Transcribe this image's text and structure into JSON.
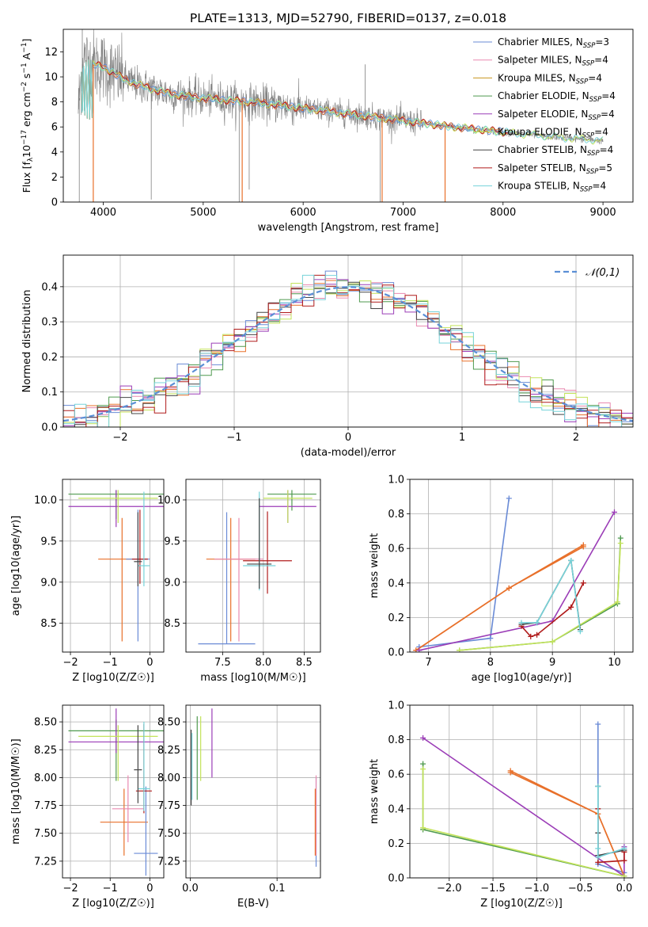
{
  "page_title": "PLATE=1313, MJD=52790, FIBERID=0137, z=0.018",
  "colors": {
    "Chabrier MILES": "#6a8bd6",
    "Salpeter MILES": "#e98ab0",
    "Kroupa MILES": "#c8961e",
    "Chabrier ELODIE": "#4f9a4f",
    "Salpeter ELODIE": "#9b3db7",
    "Kroupa ELODIE": "#c3e35a",
    "Chabrier STELIB": "#444444",
    "Salpeter STELIB": "#b01b1b",
    "Kroupa STELIB": "#76d3d9",
    "data": "#808080",
    "orange": "#e8702a",
    "normal": "#5b8fd6"
  },
  "chart_data": [
    {
      "id": "spectrum",
      "type": "line",
      "title": "PLATE=1313, MJD=52790, FIBERID=0137, z=0.018",
      "xlabel": "wavelength [Angstrom, rest frame]",
      "ylabel": "Flux [f_λ10^-17 erg cm^-2 s^-1 A^-1]",
      "xlim": [
        3600,
        9300
      ],
      "ylim": [
        0,
        13.8
      ],
      "xticks": [
        "4000",
        "5000",
        "6000",
        "7000",
        "8000",
        "9000"
      ],
      "yticks": [
        "0",
        "2",
        "4",
        "6",
        "8",
        "10",
        "12"
      ],
      "legend": [
        "Chabrier MILES, N_SSP=3",
        "Salpeter MILES, N_SSP=4",
        "Kroupa MILES, N_SSP=4",
        "Chabrier ELODIE, N_SSP=4",
        "Salpeter ELODIE, N_SSP=4",
        "Kroupa ELODIE, N_SSP=4",
        "Chabrier STELIB, N_SSP=4",
        "Salpeter STELIB, N_SSP=5",
        "Kroupa STELIB, N_SSP=4"
      ],
      "legend_position": "upper right",
      "model_curve": {
        "x": [
          3750,
          3800,
          3900,
          4000,
          4100,
          4200,
          4300,
          4500,
          4700,
          5000,
          5300,
          5600,
          6000,
          6500,
          7000,
          7500,
          8000,
          8500,
          9000
        ],
        "y": [
          7.5,
          11.5,
          11.0,
          10.8,
          10.3,
          9.9,
          9.5,
          9.0,
          8.6,
          8.3,
          8.1,
          7.9,
          7.5,
          7.0,
          6.5,
          6.0,
          5.6,
          5.2,
          4.9
        ]
      }
    },
    {
      "id": "residuals",
      "type": "line",
      "xlabel": "(data-model)/error",
      "ylabel": "Normed distribution",
      "xlim": [
        -2.5,
        2.5
      ],
      "ylim": [
        0,
        0.49
      ],
      "xticks": [
        "−2",
        "−1",
        "0",
        "1",
        "2"
      ],
      "yticks": [
        "0.0",
        "0.1",
        "0.2",
        "0.3",
        "0.4"
      ],
      "legend": "𝒩(0,1)",
      "legend_position": "upper right",
      "grid": true,
      "histogram_bin_width": 0.1
    },
    {
      "id": "age_vs_z",
      "type": "scatter",
      "xlabel": "Z [log10(Z/Z☉)]",
      "ylabel": "age [log10(age/yr)]",
      "xlim": [
        -2.2,
        0.35
      ],
      "ylim": [
        8.15,
        10.25
      ],
      "xticks": [
        "−2",
        "−1",
        "0"
      ],
      "yticks": [
        "8.5",
        "9.0",
        "9.5",
        "10.0"
      ],
      "grid": true,
      "points": [
        {
          "series": "Chabrier ELODIE",
          "x": -0.85,
          "y": 10.07,
          "x_err": 1.2,
          "y_err": [
            0.3,
            0.05
          ]
        },
        {
          "series": "Salpeter ELODIE",
          "x": -0.85,
          "y": 9.92,
          "x_err": 1.2,
          "y_err": [
            0.25,
            0.2
          ]
        },
        {
          "series": "Kroupa ELODIE",
          "x": -0.8,
          "y": 10.02,
          "x_err": 1.0,
          "y_err": [
            0.3,
            0.1
          ]
        },
        {
          "series": "Kroupa MILES",
          "x": -0.7,
          "y": 9.28,
          "x_err": 0.6,
          "y_err": [
            1.0,
            0.5
          ]
        },
        {
          "series": "Chabrier MILES",
          "x": -0.3,
          "y": 9.28,
          "x_err": 0.3,
          "y_err": [
            1.0,
            0.6
          ]
        },
        {
          "series": "Salpeter STELIB",
          "x": -0.25,
          "y": 9.28,
          "x_err": 0.2,
          "y_err": [
            0.3,
            0.6
          ]
        },
        {
          "series": "Kroupa STELIB",
          "x": -0.15,
          "y": 9.2,
          "x_err": 0.15,
          "y_err": [
            0.25,
            0.9
          ]
        },
        {
          "series": "Chabrier STELIB",
          "x": -0.3,
          "y": 9.25,
          "x_err": 0.1,
          "y_err": [
            0.3,
            0.6
          ]
        }
      ]
    },
    {
      "id": "age_vs_mass",
      "type": "scatter",
      "xlabel": "mass [log10(M/M☉)]",
      "xlim": [
        7.05,
        8.7
      ],
      "ylim": [
        8.15,
        10.25
      ],
      "xticks": [
        "7.5",
        "8.0",
        "8.5"
      ],
      "yticks": [
        "8.5",
        "9.0",
        "9.5",
        "10.0"
      ],
      "grid": true,
      "points": [
        {
          "series": "Chabrier MILES",
          "x": 7.55,
          "y": 8.25,
          "x_err": 0.35,
          "y_err": [
            0.0,
            1.6
          ]
        },
        {
          "series": "Kroupa MILES",
          "x": 7.6,
          "y": 9.28,
          "x_err": 0.3,
          "y_err": [
            1.0,
            0.5
          ]
        },
        {
          "series": "Salpeter MILES",
          "x": 7.7,
          "y": 9.28,
          "x_err": 0.3,
          "y_err": [
            1.0,
            0.5
          ]
        },
        {
          "series": "Chabrier ELODIE",
          "x": 8.35,
          "y": 10.07,
          "x_err": 0.3,
          "y_err": [
            0.2,
            0.05
          ]
        },
        {
          "series": "Salpeter ELODIE",
          "x": 8.3,
          "y": 9.92,
          "x_err": 0.35,
          "y_err": [
            0.2,
            0.2
          ]
        },
        {
          "series": "Kroupa ELODIE",
          "x": 8.3,
          "y": 10.02,
          "x_err": 0.3,
          "y_err": [
            0.3,
            0.1
          ]
        },
        {
          "series": "Salpeter STELIB",
          "x": 8.05,
          "y": 9.26,
          "x_err": 0.3,
          "y_err": [
            0.4,
            0.6
          ]
        },
        {
          "series": "Kroupa STELIB",
          "x": 7.95,
          "y": 9.2,
          "x_err": 0.2,
          "y_err": [
            0.3,
            0.9
          ]
        },
        {
          "series": "Chabrier STELIB",
          "x": 7.95,
          "y": 9.22,
          "x_err": 0.15,
          "y_err": [
            0.3,
            0.8
          ]
        }
      ]
    },
    {
      "id": "weight_vs_age",
      "type": "line",
      "xlabel": "age [log10(age/yr)]",
      "ylabel": "mass weight",
      "xlim": [
        6.7,
        10.3
      ],
      "ylim": [
        0,
        1
      ],
      "xticks": [
        "7",
        "8",
        "9",
        "10"
      ],
      "yticks": [
        "0.0",
        "0.2",
        "0.4",
        "0.6",
        "0.8",
        "1.0"
      ],
      "grid": true,
      "series": [
        {
          "name": "Chabrier MILES",
          "x": [
            6.85,
            8.0,
            8.3
          ],
          "y": [
            0.03,
            0.08,
            0.89
          ]
        },
        {
          "name": "Salpeter MILES",
          "x": [
            6.8,
            8.3,
            9.5
          ],
          "y": [
            0.01,
            0.37,
            0.61
          ]
        },
        {
          "name": "Kroupa MILES",
          "x": [
            6.8,
            8.3,
            9.5
          ],
          "y": [
            0.01,
            0.37,
            0.62
          ]
        },
        {
          "name": "Chabrier ELODIE",
          "x": [
            7.5,
            9.0,
            10.05,
            10.1
          ],
          "y": [
            0.01,
            0.06,
            0.28,
            0.66
          ]
        },
        {
          "name": "Salpeter ELODIE",
          "x": [
            6.85,
            9.0,
            10.0
          ],
          "y": [
            0.01,
            0.18,
            0.81
          ]
        },
        {
          "name": "Kroupa ELODIE",
          "x": [
            7.5,
            9.0,
            10.05,
            10.1
          ],
          "y": [
            0.01,
            0.06,
            0.29,
            0.63
          ]
        },
        {
          "name": "Chabrier STELIB",
          "x": [
            8.5,
            8.75,
            9.3,
            9.45
          ],
          "y": [
            0.16,
            0.17,
            0.53,
            0.13
          ]
        },
        {
          "name": "Salpeter STELIB",
          "x": [
            8.5,
            8.65,
            8.75,
            9.3,
            9.5
          ],
          "y": [
            0.15,
            0.09,
            0.1,
            0.26,
            0.4
          ]
        },
        {
          "name": "Kroupa STELIB",
          "x": [
            8.5,
            8.75,
            9.3,
            9.45
          ],
          "y": [
            0.17,
            0.17,
            0.53,
            0.12
          ]
        }
      ]
    },
    {
      "id": "mass_vs_z",
      "type": "scatter",
      "xlabel": "Z [log10(Z/Z☉)]",
      "ylabel": "mass [log10(M/M☉)]",
      "xlim": [
        -2.2,
        0.35
      ],
      "ylim": [
        7.1,
        8.65
      ],
      "xticks": [
        "−2",
        "−1",
        "0"
      ],
      "yticks": [
        "7.25",
        "7.50",
        "7.75",
        "8.00",
        "8.25",
        "8.50"
      ],
      "grid": true,
      "points": [
        {
          "series": "Chabrier ELODIE",
          "x": -0.85,
          "y": 8.42,
          "x_err": 1.2,
          "y_err": [
            0.45,
            0.1
          ]
        },
        {
          "series": "Salpeter ELODIE",
          "x": -0.85,
          "y": 8.32,
          "x_err": 1.2,
          "y_err": [
            0.1,
            0.3
          ]
        },
        {
          "series": "Kroupa ELODIE",
          "x": -0.8,
          "y": 8.37,
          "x_err": 1.0,
          "y_err": [
            0.4,
            0.1
          ]
        },
        {
          "series": "Kroupa MILES",
          "x": -0.65,
          "y": 7.6,
          "x_err": 0.6,
          "y_err": [
            0.3,
            0.3
          ]
        },
        {
          "series": "Salpeter MILES",
          "x": -0.55,
          "y": 7.72,
          "x_err": 0.4,
          "y_err": [
            0.3,
            0.3
          ]
        },
        {
          "series": "Chabrier MILES",
          "x": -0.1,
          "y": 7.32,
          "x_err": 0.3,
          "y_err": [
            0.2,
            0.6
          ]
        },
        {
          "series": "Salpeter STELIB",
          "x": -0.15,
          "y": 7.88,
          "x_err": 0.2,
          "y_err": [
            0.2,
            0.6
          ]
        },
        {
          "series": "Kroupa STELIB",
          "x": -0.15,
          "y": 7.9,
          "x_err": 0.15,
          "y_err": [
            0.2,
            0.6
          ]
        },
        {
          "series": "Chabrier STELIB",
          "x": -0.3,
          "y": 8.07,
          "x_err": 0.1,
          "y_err": [
            0.3,
            0.4
          ]
        }
      ]
    },
    {
      "id": "mass_vs_ebv",
      "type": "scatter",
      "xlabel": "E(B-V)",
      "xlim": [
        -0.005,
        0.15
      ],
      "ylim": [
        7.1,
        8.65
      ],
      "xticks": [
        "0.0",
        "0.1"
      ],
      "yticks": [
        "7.25",
        "7.50",
        "7.75",
        "8.00",
        "8.25",
        "8.50"
      ],
      "grid": true,
      "points": [
        {
          "series": "Chabrier MILES",
          "x": 0.145,
          "y": 7.5,
          "y_err": [
            0.3,
            0.5
          ]
        },
        {
          "series": "Salpeter MILES",
          "x": 0.145,
          "y": 7.6,
          "y_err": [
            0.3,
            0.42
          ]
        },
        {
          "series": "Kroupa MILES",
          "x": 0.144,
          "y": 7.6,
          "y_err": [
            0.3,
            0.3
          ]
        },
        {
          "series": "Chabrier ELODIE",
          "x": 0.008,
          "y": 8.2,
          "y_err": [
            0.4,
            0.35
          ]
        },
        {
          "series": "Salpeter ELODIE",
          "x": 0.025,
          "y": 8.3,
          "y_err": [
            0.3,
            0.32
          ]
        },
        {
          "series": "Kroupa ELODIE",
          "x": 0.012,
          "y": 8.25,
          "y_err": [
            0.28,
            0.3
          ]
        },
        {
          "series": "Chabrier STELIB",
          "x": 0.001,
          "y": 8.05,
          "y_err": [
            0.3,
            0.38
          ]
        },
        {
          "series": "Kroupa STELIB",
          "x": 0.002,
          "y": 8.1,
          "y_err": [
            0.3,
            0.3
          ]
        }
      ]
    },
    {
      "id": "weight_vs_z",
      "type": "line",
      "xlabel": "Z [log10(Z/Z☉)]",
      "ylabel": "mass weight",
      "xlim": [
        -2.45,
        0.1
      ],
      "ylim": [
        0,
        1
      ],
      "xticks": [
        "−2.0",
        "−1.5",
        "−1.0",
        "−0.5",
        "0.0"
      ],
      "yticks": [
        "0.0",
        "0.2",
        "0.4",
        "0.6",
        "0.8",
        "1.0"
      ],
      "grid": true,
      "series": [
        {
          "name": "Chabrier MILES",
          "x": [
            0.0,
            -0.3,
            -0.3
          ],
          "y": [
            0.03,
            0.08,
            0.89
          ]
        },
        {
          "name": "Salpeter MILES",
          "x": [
            -1.3,
            -0.3,
            0.0
          ],
          "y": [
            0.61,
            0.37,
            0.01
          ]
        },
        {
          "name": "Kroupa MILES",
          "x": [
            -1.3,
            -0.3,
            0.0
          ],
          "y": [
            0.62,
            0.37,
            0.01
          ]
        },
        {
          "name": "Chabrier ELODIE",
          "x": [
            -2.3,
            -2.3,
            0.0
          ],
          "y": [
            0.66,
            0.28,
            0.01
          ]
        },
        {
          "name": "Salpeter ELODIE",
          "x": [
            -2.3,
            0.0,
            0.0
          ],
          "y": [
            0.81,
            0.01,
            0.18
          ]
        },
        {
          "name": "Kroupa ELODIE",
          "x": [
            -2.3,
            -2.3,
            0.0
          ],
          "y": [
            0.63,
            0.29,
            0.01
          ]
        },
        {
          "name": "Chabrier STELIB",
          "x": [
            -0.3,
            -0.3,
            -0.3,
            0.0
          ],
          "y": [
            0.53,
            0.26,
            0.13,
            0.16
          ]
        },
        {
          "name": "Salpeter STELIB",
          "x": [
            -0.3,
            -0.3,
            0.0,
            0.0
          ],
          "y": [
            0.4,
            0.09,
            0.1,
            0.15
          ]
        },
        {
          "name": "Kroupa STELIB",
          "x": [
            -0.3,
            -0.3,
            -0.3,
            0.0
          ],
          "y": [
            0.53,
            0.17,
            0.12,
            0.17
          ]
        }
      ]
    }
  ]
}
